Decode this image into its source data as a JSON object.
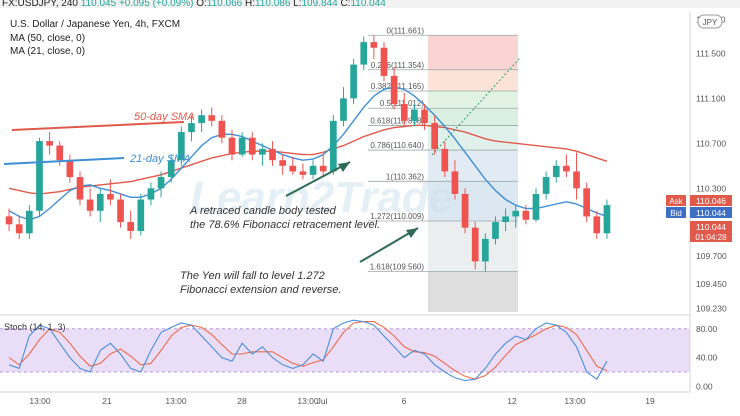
{
  "header": {
    "symbol": "FX:USDJPY, 240",
    "last": "110.045",
    "change": "+0.095 (+0.09%)",
    "o_label": "O:",
    "o_value": "110.066",
    "h_label": "H:",
    "h_value": "110.086",
    "l_label": "L:",
    "l_value": "109.844",
    "c_label": "C:",
    "c_value": "110.044"
  },
  "legend": {
    "title": "U.S. Dollar / Japanese Yen, 4h, FXCM",
    "ma1": "MA (50, close, 0)",
    "ma2": "MA (21, close, 0)"
  },
  "currency_badge": "JPY",
  "annotations": {
    "sma50": "50-day SMA",
    "sma21": "21-day SMA",
    "note1_line1": "A retraced  candle body tested",
    "note1_line2": "the 78.6% Fibonacci retracement level.",
    "note2_line1": "The Yen will fall to level 1.272",
    "note2_line2": "Fibonacci extension and reverse."
  },
  "price_tags": {
    "ask_label": "Ask",
    "ask_value": "110.046",
    "bid_label": "Bid",
    "bid_value": "110.044",
    "last_value": "110.044",
    "countdown": "01:04:28"
  },
  "stoch_label": "Stoch (14, 1, 3)",
  "colors": {
    "up": "#26a69a",
    "down": "#ef5350",
    "ma50": "#e05a4c",
    "ma21": "#3d8fd6",
    "stoch_k": "#4a90d9",
    "stoch_d": "#ef6c4a",
    "stoch_fill": "#dcc6f2"
  },
  "chart_data": [
    {
      "type": "candlestick",
      "title": "U.S. Dollar / Japanese Yen, 4h, FXCM",
      "x_ticks": [
        "13:00",
        "21",
        "13:00",
        "28",
        "13:00",
        "Jul",
        "6",
        "12",
        "13:00",
        "19"
      ],
      "y_ticks": [
        111.8,
        111.5,
        111.1,
        110.7,
        110.3,
        109.7,
        109.45,
        109.23
      ],
      "ylim": [
        109.2,
        111.85
      ],
      "candles": [
        {
          "o": 110.05,
          "h": 110.12,
          "l": 109.92,
          "c": 109.98
        },
        {
          "o": 109.98,
          "h": 110.05,
          "l": 109.85,
          "c": 109.9
        },
        {
          "o": 109.9,
          "h": 110.15,
          "l": 109.85,
          "c": 110.1
        },
        {
          "o": 110.1,
          "h": 110.75,
          "l": 110.05,
          "c": 110.72
        },
        {
          "o": 110.72,
          "h": 110.8,
          "l": 110.6,
          "c": 110.68
        },
        {
          "o": 110.68,
          "h": 110.72,
          "l": 110.5,
          "c": 110.55
        },
        {
          "o": 110.55,
          "h": 110.6,
          "l": 110.35,
          "c": 110.4
        },
        {
          "o": 110.4,
          "h": 110.45,
          "l": 110.15,
          "c": 110.2
        },
        {
          "o": 110.2,
          "h": 110.3,
          "l": 110.05,
          "c": 110.1
        },
        {
          "o": 110.1,
          "h": 110.3,
          "l": 110.0,
          "c": 110.25
        },
        {
          "o": 110.25,
          "h": 110.38,
          "l": 110.15,
          "c": 110.2
        },
        {
          "o": 110.2,
          "h": 110.25,
          "l": 109.95,
          "c": 110.0
        },
        {
          "o": 110.0,
          "h": 110.1,
          "l": 109.85,
          "c": 109.92
        },
        {
          "o": 109.92,
          "h": 110.25,
          "l": 109.88,
          "c": 110.2
        },
        {
          "o": 110.2,
          "h": 110.35,
          "l": 110.15,
          "c": 110.3
        },
        {
          "o": 110.3,
          "h": 110.45,
          "l": 110.22,
          "c": 110.4
        },
        {
          "o": 110.4,
          "h": 110.6,
          "l": 110.35,
          "c": 110.55
        },
        {
          "o": 110.55,
          "h": 110.85,
          "l": 110.5,
          "c": 110.8
        },
        {
          "o": 110.8,
          "h": 110.95,
          "l": 110.72,
          "c": 110.88
        },
        {
          "o": 110.88,
          "h": 111.0,
          "l": 110.8,
          "c": 110.95
        },
        {
          "o": 110.95,
          "h": 111.02,
          "l": 110.85,
          "c": 110.9
        },
        {
          "o": 110.9,
          "h": 110.95,
          "l": 110.7,
          "c": 110.75
        },
        {
          "o": 110.75,
          "h": 110.82,
          "l": 110.55,
          "c": 110.6
        },
        {
          "o": 110.6,
          "h": 110.8,
          "l": 110.58,
          "c": 110.75
        },
        {
          "o": 110.75,
          "h": 110.8,
          "l": 110.55,
          "c": 110.6
        },
        {
          "o": 110.6,
          "h": 110.7,
          "l": 110.5,
          "c": 110.65
        },
        {
          "o": 110.65,
          "h": 110.72,
          "l": 110.5,
          "c": 110.55
        },
        {
          "o": 110.55,
          "h": 110.6,
          "l": 110.42,
          "c": 110.5
        },
        {
          "o": 110.5,
          "h": 110.58,
          "l": 110.42,
          "c": 110.45
        },
        {
          "o": 110.45,
          "h": 110.52,
          "l": 110.38,
          "c": 110.42
        },
        {
          "o": 110.42,
          "h": 110.55,
          "l": 110.38,
          "c": 110.5
        },
        {
          "o": 110.5,
          "h": 110.6,
          "l": 110.4,
          "c": 110.45
        },
        {
          "o": 110.45,
          "h": 110.95,
          "l": 110.42,
          "c": 110.9
        },
        {
          "o": 110.9,
          "h": 111.2,
          "l": 110.85,
          "c": 111.1
        },
        {
          "o": 111.1,
          "h": 111.45,
          "l": 111.05,
          "c": 111.4
        },
        {
          "o": 111.4,
          "h": 111.65,
          "l": 111.35,
          "c": 111.6
        },
        {
          "o": 111.6,
          "h": 111.66,
          "l": 111.45,
          "c": 111.55
        },
        {
          "o": 111.55,
          "h": 111.6,
          "l": 111.25,
          "c": 111.3
        },
        {
          "o": 111.3,
          "h": 111.38,
          "l": 111.0,
          "c": 111.05
        },
        {
          "o": 111.05,
          "h": 111.15,
          "l": 110.85,
          "c": 110.9
        },
        {
          "o": 110.9,
          "h": 111.05,
          "l": 110.85,
          "c": 111.0
        },
        {
          "o": 111.0,
          "h": 111.05,
          "l": 110.82,
          "c": 110.88
        },
        {
          "o": 110.88,
          "h": 110.95,
          "l": 110.6,
          "c": 110.65
        },
        {
          "o": 110.65,
          "h": 110.72,
          "l": 110.4,
          "c": 110.45
        },
        {
          "o": 110.45,
          "h": 110.55,
          "l": 110.2,
          "c": 110.25
        },
        {
          "o": 110.25,
          "h": 110.3,
          "l": 109.9,
          "c": 109.95
        },
        {
          "o": 109.95,
          "h": 110.0,
          "l": 109.58,
          "c": 109.65
        },
        {
          "o": 109.65,
          "h": 109.9,
          "l": 109.56,
          "c": 109.85
        },
        {
          "o": 109.85,
          "h": 110.05,
          "l": 109.8,
          "c": 110.0
        },
        {
          "o": 110.0,
          "h": 110.12,
          "l": 109.92,
          "c": 110.05
        },
        {
          "o": 110.05,
          "h": 110.15,
          "l": 109.95,
          "c": 110.1
        },
        {
          "o": 110.1,
          "h": 110.15,
          "l": 109.98,
          "c": 110.02
        },
        {
          "o": 110.02,
          "h": 110.3,
          "l": 110.0,
          "c": 110.25
        },
        {
          "o": 110.25,
          "h": 110.45,
          "l": 110.2,
          "c": 110.4
        },
        {
          "o": 110.4,
          "h": 110.55,
          "l": 110.35,
          "c": 110.5
        },
        {
          "o": 110.5,
          "h": 110.6,
          "l": 110.4,
          "c": 110.45
        },
        {
          "o": 110.45,
          "h": 110.62,
          "l": 110.2,
          "c": 110.3
        },
        {
          "o": 110.3,
          "h": 110.35,
          "l": 110.0,
          "c": 110.05
        },
        {
          "o": 110.05,
          "h": 110.1,
          "l": 109.85,
          "c": 109.9
        },
        {
          "o": 109.9,
          "h": 110.2,
          "l": 109.85,
          "c": 110.15
        }
      ],
      "ma50": [
        110.3,
        110.28,
        110.26,
        110.25,
        110.26,
        110.27,
        110.29,
        110.31,
        110.32,
        110.33,
        110.34,
        110.35,
        110.36,
        110.38,
        110.4,
        110.42,
        110.45,
        110.48,
        110.51,
        110.54,
        110.57,
        110.59,
        110.61,
        110.62,
        110.63,
        110.63,
        110.63,
        110.62,
        110.61,
        110.6,
        110.6,
        110.62,
        110.65,
        110.68,
        110.72,
        110.76,
        110.79,
        110.82,
        110.84,
        110.85,
        110.86,
        110.86,
        110.85,
        110.84,
        110.82,
        110.8,
        110.77,
        110.74,
        110.72,
        110.71,
        110.7,
        110.69,
        110.68,
        110.67,
        110.66,
        110.65,
        110.63,
        110.6,
        110.57,
        110.54
      ],
      "ma21": [
        110.1,
        110.05,
        110.02,
        110.05,
        110.12,
        110.2,
        110.28,
        110.32,
        110.33,
        110.3,
        110.28,
        110.25,
        110.22,
        110.22,
        110.25,
        110.3,
        110.38,
        110.48,
        110.58,
        110.68,
        110.75,
        110.78,
        110.78,
        110.76,
        110.72,
        110.68,
        110.64,
        110.6,
        110.57,
        110.55,
        110.56,
        110.6,
        110.68,
        110.78,
        110.9,
        111.02,
        111.12,
        111.18,
        111.2,
        111.18,
        111.12,
        111.04,
        110.95,
        110.85,
        110.74,
        110.62,
        110.5,
        110.38,
        110.28,
        110.2,
        110.15,
        110.12,
        110.12,
        110.14,
        110.16,
        110.18,
        110.16,
        110.12,
        110.08,
        110.05
      ],
      "fib_levels": [
        {
          "label": "0(111.661)",
          "price": 111.661
        },
        {
          "label": "0.236(111.354)",
          "price": 111.354
        },
        {
          "label": "0.382(111.165)",
          "price": 111.165
        },
        {
          "label": "0.5(111.012)",
          "price": 111.012
        },
        {
          "label": "0.618(110.858)",
          "price": 110.858
        },
        {
          "label": "0.786(110.640)",
          "price": 110.64
        },
        {
          "label": "1(110.362)",
          "price": 110.362
        },
        {
          "label": "1.272(110.009)",
          "price": 110.009
        },
        {
          "label": "1.618(109.560)",
          "price": 109.56
        }
      ]
    },
    {
      "type": "line",
      "title": "Stoch (14, 1, 3)",
      "y_ticks": [
        80.0,
        40.0,
        0.0
      ],
      "ylim": [
        -5,
        95
      ],
      "band": [
        20,
        80
      ],
      "k": [
        30,
        25,
        70,
        85,
        80,
        60,
        40,
        25,
        20,
        50,
        60,
        45,
        25,
        20,
        50,
        75,
        82,
        88,
        85,
        70,
        55,
        40,
        35,
        60,
        45,
        55,
        40,
        30,
        25,
        30,
        45,
        35,
        80,
        88,
        92,
        90,
        85,
        70,
        55,
        40,
        50,
        45,
        30,
        20,
        12,
        8,
        10,
        25,
        45,
        60,
        70,
        65,
        80,
        88,
        85,
        75,
        55,
        20,
        10,
        35
      ],
      "d": [
        40,
        30,
        45,
        65,
        80,
        75,
        60,
        42,
        28,
        32,
        45,
        52,
        42,
        30,
        32,
        50,
        70,
        82,
        85,
        82,
        72,
        58,
        45,
        45,
        48,
        48,
        48,
        40,
        32,
        28,
        33,
        37,
        55,
        75,
        88,
        90,
        90,
        82,
        70,
        55,
        48,
        47,
        42,
        32,
        22,
        14,
        10,
        15,
        27,
        43,
        58,
        65,
        72,
        80,
        85,
        82,
        72,
        50,
        28,
        22
      ]
    }
  ]
}
